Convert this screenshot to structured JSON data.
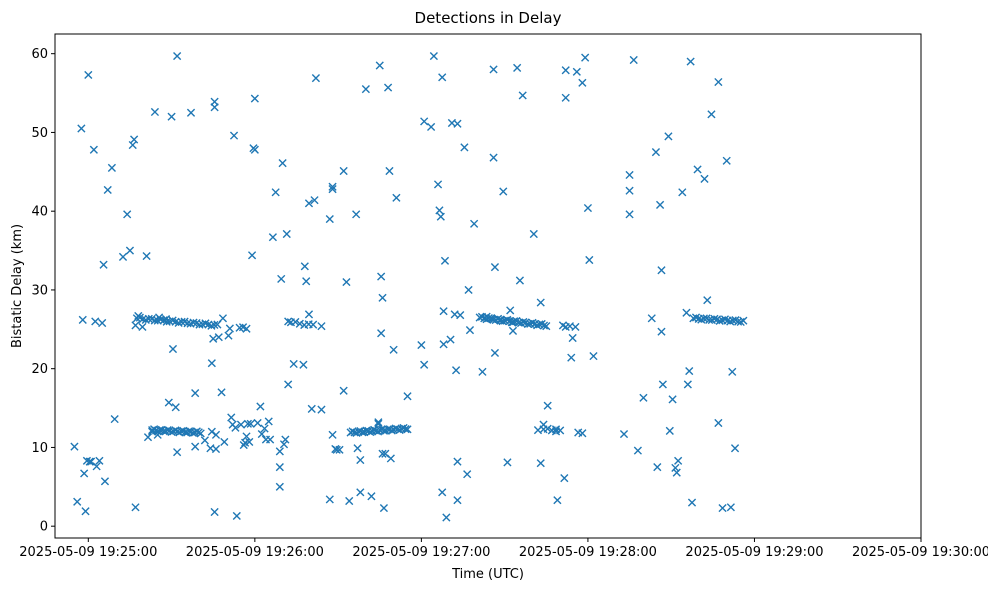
{
  "chart_data": {
    "type": "scatter",
    "title": "Detections in Delay",
    "xlabel": "Time (UTC)",
    "ylabel": "Bistatic Delay (km)",
    "marker": "x",
    "color": "#1f77b4",
    "x_unit": "seconds after 2025-05-09 19:25:00",
    "xlim": [
      -12,
      300
    ],
    "ylim": [
      -1.5,
      62.5
    ],
    "xticks": [
      {
        "value": 0,
        "label": "2025-05-09 19:25:00"
      },
      {
        "value": 60,
        "label": "2025-05-09 19:26:00"
      },
      {
        "value": 120,
        "label": "2025-05-09 19:27:00"
      },
      {
        "value": 180,
        "label": "2025-05-09 19:28:00"
      },
      {
        "value": 240,
        "label": "2025-05-09 19:29:00"
      },
      {
        "value": 300,
        "label": "2025-05-09 19:30:00"
      }
    ],
    "yticks": [
      {
        "value": 0,
        "label": "0"
      },
      {
        "value": 10,
        "label": "10"
      },
      {
        "value": 20,
        "label": "20"
      },
      {
        "value": 30,
        "label": "30"
      },
      {
        "value": 40,
        "label": "40"
      },
      {
        "value": 50,
        "label": "50"
      },
      {
        "value": 60,
        "label": "60"
      }
    ],
    "points": [
      [
        -5.0,
        10.1
      ],
      [
        -4.0,
        3.1
      ],
      [
        -2.5,
        50.5
      ],
      [
        -2.0,
        26.2
      ],
      [
        -1.5,
        6.7
      ],
      [
        -1.0,
        1.9
      ],
      [
        -0.5,
        8.3
      ],
      [
        0.0,
        57.3
      ],
      [
        0.5,
        8.2
      ],
      [
        1.0,
        8.2
      ],
      [
        2.0,
        47.8
      ],
      [
        2.5,
        26.0
      ],
      [
        3.0,
        7.6
      ],
      [
        4.0,
        8.3
      ],
      [
        5.0,
        25.8
      ],
      [
        5.5,
        33.2
      ],
      [
        6.0,
        5.7
      ],
      [
        7.0,
        42.7
      ],
      [
        8.5,
        45.5
      ],
      [
        9.5,
        13.6
      ],
      [
        12.5,
        34.2
      ],
      [
        14.0,
        39.6
      ],
      [
        15.0,
        35.0
      ],
      [
        16.0,
        48.4
      ],
      [
        16.5,
        49.1
      ],
      [
        17.0,
        25.5
      ],
      [
        17.0,
        2.4
      ],
      [
        18.0,
        26.7
      ],
      [
        19.5,
        25.3
      ],
      [
        21.0,
        34.3
      ],
      [
        21.5,
        11.3
      ],
      [
        23.0,
        12.0
      ],
      [
        24.0,
        52.6
      ],
      [
        25.0,
        11.6
      ],
      [
        25.5,
        26.5
      ],
      [
        28.0,
        26.3
      ],
      [
        29.0,
        15.7
      ],
      [
        30.0,
        52.0
      ],
      [
        30.5,
        22.5
      ],
      [
        31.5,
        15.1
      ],
      [
        32.0,
        9.4
      ],
      [
        32.0,
        59.7
      ],
      [
        37.0,
        52.5
      ],
      [
        38.5,
        10.1
      ],
      [
        38.5,
        16.9
      ],
      [
        42.0,
        10.9
      ],
      [
        44.0,
        9.9
      ],
      [
        44.5,
        12.0
      ],
      [
        44.5,
        20.7
      ],
      [
        45.0,
        23.8
      ],
      [
        45.5,
        53.9
      ],
      [
        45.5,
        53.2
      ],
      [
        45.5,
        1.8
      ],
      [
        46.0,
        11.6
      ],
      [
        46.0,
        9.8
      ],
      [
        47.0,
        24.0
      ],
      [
        48.0,
        17.0
      ],
      [
        48.5,
        26.4
      ],
      [
        49.0,
        10.7
      ],
      [
        50.5,
        24.2
      ],
      [
        51.0,
        25.1
      ],
      [
        51.5,
        13.8
      ],
      [
        52.0,
        12.9
      ],
      [
        52.5,
        49.6
      ],
      [
        53.0,
        12.5
      ],
      [
        53.5,
        1.3
      ],
      [
        55.0,
        12.9
      ],
      [
        56.0,
        10.3
      ],
      [
        56.5,
        10.6
      ],
      [
        57.0,
        11.4
      ],
      [
        57.5,
        13.0
      ],
      [
        58.0,
        10.7
      ],
      [
        58.5,
        13.0
      ],
      [
        59.0,
        34.4
      ],
      [
        59.5,
        48.0
      ],
      [
        60.0,
        54.3
      ],
      [
        60.0,
        47.8
      ],
      [
        61.0,
        13.1
      ],
      [
        62.0,
        15.2
      ],
      [
        62.5,
        11.7
      ],
      [
        63.5,
        12.4
      ],
      [
        64.0,
        11.0
      ],
      [
        65.0,
        13.3
      ],
      [
        65.5,
        11.0
      ],
      [
        66.5,
        36.7
      ],
      [
        67.5,
        42.4
      ],
      [
        69.0,
        5.0
      ],
      [
        69.0,
        9.5
      ],
      [
        69.0,
        7.5
      ],
      [
        69.5,
        31.4
      ],
      [
        70.0,
        46.1
      ],
      [
        70.5,
        10.4
      ],
      [
        71.0,
        11.0
      ],
      [
        71.5,
        37.1
      ],
      [
        72.0,
        18.0
      ],
      [
        72.0,
        26.0
      ],
      [
        74.0,
        20.6
      ],
      [
        77.5,
        20.5
      ],
      [
        78.0,
        33.0
      ],
      [
        78.5,
        31.1
      ],
      [
        79.5,
        26.9
      ],
      [
        79.5,
        41.0
      ],
      [
        80.5,
        14.9
      ],
      [
        81.5,
        41.4
      ],
      [
        82.0,
        56.9
      ],
      [
        84.0,
        14.8
      ],
      [
        84.0,
        25.4
      ],
      [
        87.0,
        39.0
      ],
      [
        87.0,
        3.4
      ],
      [
        88.0,
        42.8
      ],
      [
        88.0,
        43.1
      ],
      [
        88.0,
        11.6
      ],
      [
        89.0,
        9.8
      ],
      [
        89.5,
        9.7
      ],
      [
        90.5,
        9.7
      ],
      [
        92.0,
        45.1
      ],
      [
        92.0,
        17.2
      ],
      [
        93.0,
        31.0
      ],
      [
        94.0,
        3.2
      ],
      [
        96.5,
        39.6
      ],
      [
        97.0,
        9.9
      ],
      [
        98.0,
        8.4
      ],
      [
        98.0,
        4.3
      ],
      [
        100.0,
        55.5
      ],
      [
        102.0,
        3.8
      ],
      [
        103.0,
        12.2
      ],
      [
        104.5,
        13.2
      ],
      [
        104.5,
        13.0
      ],
      [
        105.0,
        58.5
      ],
      [
        105.5,
        31.7
      ],
      [
        105.5,
        24.5
      ],
      [
        106.0,
        29.0
      ],
      [
        106.0,
        9.2
      ],
      [
        106.5,
        2.3
      ],
      [
        107.0,
        9.2
      ],
      [
        108.0,
        55.7
      ],
      [
        108.5,
        45.1
      ],
      [
        109.0,
        8.6
      ],
      [
        110.0,
        22.4
      ],
      [
        111.0,
        41.7
      ],
      [
        115.0,
        16.5
      ],
      [
        120.0,
        23.0
      ],
      [
        121.0,
        51.4
      ],
      [
        121.0,
        20.5
      ],
      [
        123.5,
        50.7
      ],
      [
        124.5,
        59.7
      ],
      [
        126.0,
        43.4
      ],
      [
        126.5,
        40.1
      ],
      [
        127.0,
        39.3
      ],
      [
        127.5,
        4.3
      ],
      [
        127.5,
        57.0
      ],
      [
        128.0,
        27.3
      ],
      [
        128.0,
        23.1
      ],
      [
        128.5,
        33.7
      ],
      [
        129.0,
        1.1
      ],
      [
        130.5,
        23.7
      ],
      [
        131.0,
        51.2
      ],
      [
        132.0,
        26.9
      ],
      [
        132.5,
        19.8
      ],
      [
        133.0,
        8.2
      ],
      [
        133.0,
        3.3
      ],
      [
        133.0,
        51.1
      ],
      [
        134.0,
        26.8
      ],
      [
        135.5,
        48.1
      ],
      [
        136.5,
        6.6
      ],
      [
        137.0,
        30.0
      ],
      [
        137.5,
        24.9
      ],
      [
        139.0,
        38.4
      ],
      [
        142.0,
        19.6
      ],
      [
        143.5,
        26.6
      ],
      [
        145.5,
        26.3
      ],
      [
        146.0,
        58.0
      ],
      [
        146.0,
        46.8
      ],
      [
        146.5,
        32.9
      ],
      [
        146.5,
        22.0
      ],
      [
        148.5,
        26.1
      ],
      [
        149.5,
        42.5
      ],
      [
        151.0,
        8.1
      ],
      [
        152.0,
        27.4
      ],
      [
        153.0,
        25.9
      ],
      [
        153.0,
        24.8
      ],
      [
        154.5,
        58.2
      ],
      [
        155.5,
        31.2
      ],
      [
        156.5,
        54.7
      ],
      [
        160.5,
        37.1
      ],
      [
        162.0,
        12.2
      ],
      [
        163.0,
        28.4
      ],
      [
        163.0,
        8.0
      ],
      [
        164.0,
        12.9
      ],
      [
        165.5,
        15.3
      ],
      [
        168.5,
        12.3
      ],
      [
        169.0,
        3.3
      ],
      [
        171.0,
        25.5
      ],
      [
        171.5,
        6.1
      ],
      [
        172.0,
        57.9
      ],
      [
        172.0,
        54.4
      ],
      [
        172.0,
        25.3
      ],
      [
        173.5,
        25.4
      ],
      [
        174.0,
        21.4
      ],
      [
        174.5,
        23.9
      ],
      [
        175.5,
        25.3
      ],
      [
        176.0,
        57.7
      ],
      [
        176.5,
        11.9
      ],
      [
        178.0,
        56.3
      ],
      [
        178.0,
        11.8
      ],
      [
        179.0,
        59.5
      ],
      [
        180.0,
        40.4
      ],
      [
        180.5,
        33.8
      ],
      [
        182.0,
        21.6
      ],
      [
        193.0,
        11.7
      ],
      [
        195.0,
        44.6
      ],
      [
        195.0,
        42.6
      ],
      [
        195.0,
        39.6
      ],
      [
        196.5,
        59.2
      ],
      [
        198.0,
        9.6
      ],
      [
        200.0,
        16.3
      ],
      [
        203.0,
        26.4
      ],
      [
        204.5,
        47.5
      ],
      [
        205.0,
        7.5
      ],
      [
        206.0,
        40.8
      ],
      [
        206.5,
        32.5
      ],
      [
        206.5,
        24.7
      ],
      [
        207.0,
        18.0
      ],
      [
        209.0,
        49.5
      ],
      [
        209.5,
        12.1
      ],
      [
        210.5,
        16.1
      ],
      [
        211.5,
        7.4
      ],
      [
        212.0,
        6.8
      ],
      [
        212.5,
        8.3
      ],
      [
        214.0,
        42.4
      ],
      [
        215.5,
        27.1
      ],
      [
        216.0,
        18.0
      ],
      [
        216.5,
        19.7
      ],
      [
        217.0,
        59.0
      ],
      [
        217.5,
        3.0
      ],
      [
        219.5,
        45.3
      ],
      [
        222.0,
        44.1
      ],
      [
        223.0,
        28.7
      ],
      [
        224.5,
        52.3
      ],
      [
        227.0,
        56.4
      ],
      [
        227.0,
        13.1
      ],
      [
        228.5,
        2.3
      ],
      [
        230.0,
        46.4
      ],
      [
        231.5,
        2.4
      ],
      [
        232.0,
        19.6
      ],
      [
        233.0,
        9.9
      ]
    ],
    "clusters": [
      {
        "x_start": 17.5,
        "x_end": 46.5,
        "y_start": 26.4,
        "y_end": 25.5,
        "count": 28
      },
      {
        "x_start": 23.0,
        "x_end": 40.5,
        "y_start": 12.2,
        "y_end": 11.9,
        "count": 26
      },
      {
        "x_start": 54.5,
        "x_end": 57.0,
        "y_start": 25.2,
        "y_end": 25.1,
        "count": 3
      },
      {
        "x_start": 73.0,
        "x_end": 81.0,
        "y_start": 25.9,
        "y_end": 25.5,
        "count": 6
      },
      {
        "x_start": 94.5,
        "x_end": 115.0,
        "y_start": 11.9,
        "y_end": 12.4,
        "count": 30
      },
      {
        "x_start": 141.0,
        "x_end": 165.0,
        "y_start": 26.5,
        "y_end": 25.5,
        "count": 30
      },
      {
        "x_start": 164.0,
        "x_end": 170.0,
        "y_start": 12.3,
        "y_end": 12.1,
        "count": 5
      },
      {
        "x_start": 218.0,
        "x_end": 236.0,
        "y_start": 26.4,
        "y_end": 26.0,
        "count": 20
      }
    ]
  }
}
